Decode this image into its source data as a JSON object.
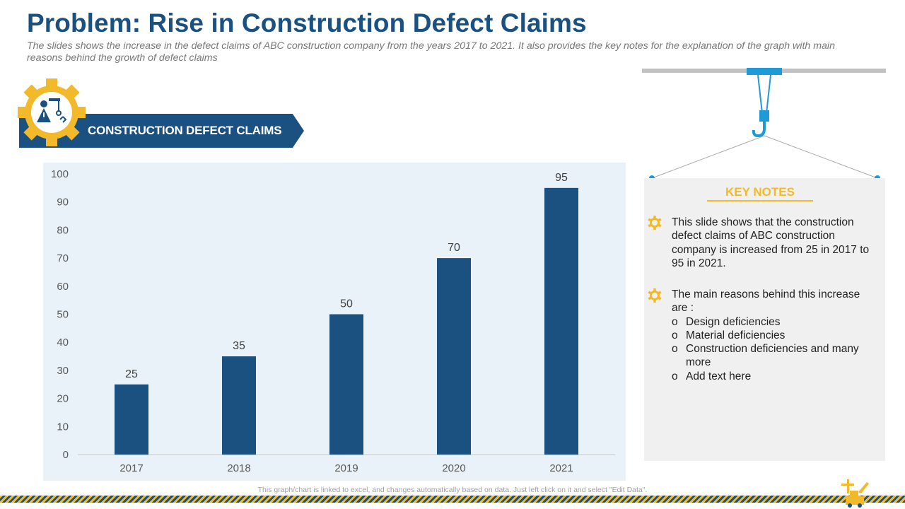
{
  "page": {
    "title": "Problem: Rise in Construction Defect Claims",
    "subtitle": "The slides shows  the increase in the defect claims of ABC construction company from the years 2017 to 2021. It  also provides the key notes for the explanation of the graph with  main reasons behind the growth  of defect claims"
  },
  "banner": {
    "label": "CONSTRUCTION DEFECT CLAIMS"
  },
  "chart_data": {
    "type": "bar",
    "title": "",
    "categories": [
      "2017",
      "2018",
      "2019",
      "2020",
      "2021"
    ],
    "values": [
      25,
      35,
      50,
      70,
      95
    ],
    "ylim": [
      0,
      100
    ],
    "yticks": [
      0,
      10,
      20,
      30,
      40,
      50,
      60,
      70,
      80,
      90,
      100
    ],
    "xlabel": "",
    "ylabel": "",
    "bar_color": "#1a5180",
    "data_labels": true
  },
  "key_notes": {
    "title": "KEY NOTES",
    "note1": "This slide shows that the construction defect claims of ABC construction company is increased from 25 in 2017 to 95 in 2021.",
    "note2": "The main reasons behind this increase are :",
    "reasons": [
      "Design deficiencies",
      "Material deficiencies",
      "Construction  deficiencies and many more",
      "Add text here"
    ]
  },
  "footer": {
    "note": "This graph/chart is linked to excel,  and changes automatically based on data. Just left click on it and select \"Edit Data\"."
  },
  "colors": {
    "primary": "#1a5180",
    "accent": "#f2b92a",
    "chart_bg": "#e9f2f9",
    "crane_blue": "#1e9ad6"
  }
}
